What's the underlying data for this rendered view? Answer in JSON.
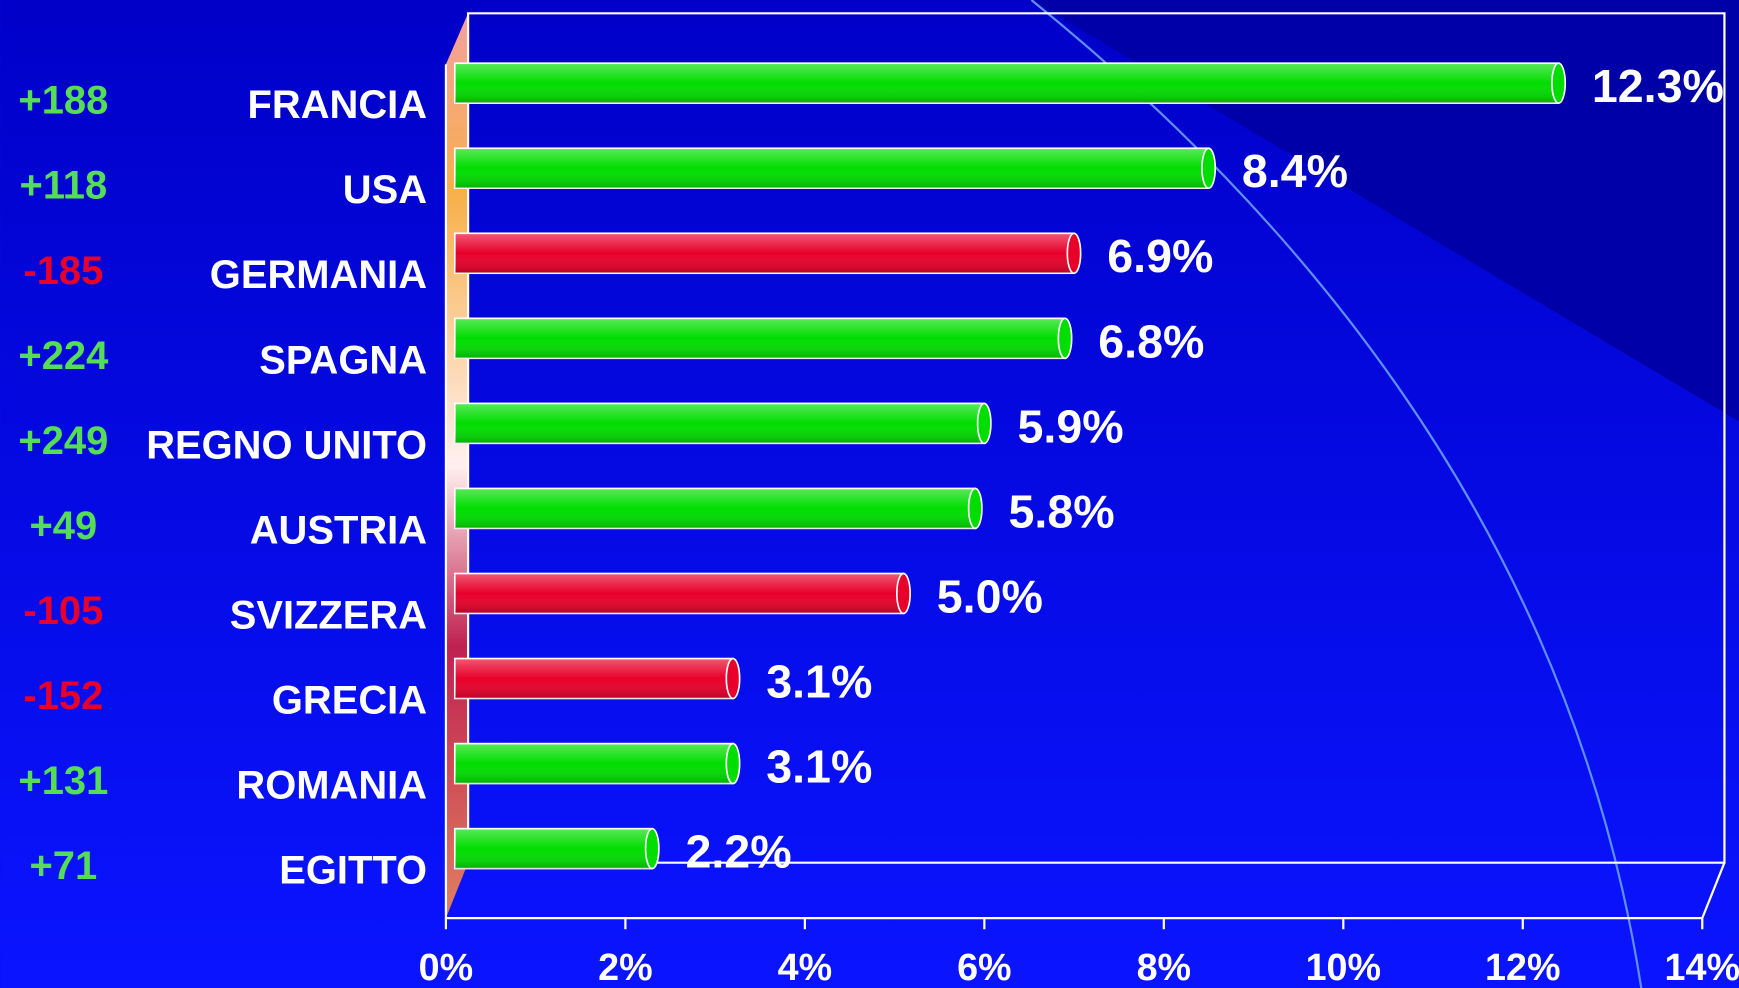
{
  "chart_data": {
    "type": "bar",
    "orientation": "horizontal",
    "categories": [
      "FRANCIA",
      "USA",
      "GERMANIA",
      "SPAGNA",
      "REGNO UNITO",
      "AUSTRIA",
      "SVIZZERA",
      "GRECIA",
      "ROMANIA",
      "EGITTO"
    ],
    "values": [
      12.3,
      8.4,
      6.9,
      6.8,
      5.9,
      5.8,
      5.0,
      3.1,
      3.1,
      2.2
    ],
    "value_labels": [
      "12.3%",
      "8.4%",
      "6.9%",
      "6.8%",
      "5.9%",
      "5.8%",
      "5.0%",
      "3.1%",
      "3.1%",
      "2.2%"
    ],
    "changes": [
      188,
      118,
      -185,
      224,
      249,
      49,
      -105,
      -152,
      131,
      71
    ],
    "change_labels": [
      "+188",
      "+118",
      "-185",
      "+224",
      "+249",
      "+49",
      "-105",
      "-152",
      "+131",
      "+71"
    ],
    "positive_color": "#00dd00",
    "negative_color": "#e8002a",
    "xlim": [
      0,
      14
    ],
    "xticks": [
      {
        "value": 0,
        "label": "0%"
      },
      {
        "value": 2,
        "label": "2%"
      },
      {
        "value": 4,
        "label": "4%"
      },
      {
        "value": 6,
        "label": "6%"
      },
      {
        "value": 8,
        "label": "8%"
      },
      {
        "value": 10,
        "label": "10%"
      },
      {
        "value": 12,
        "label": "12%"
      },
      {
        "value": 14,
        "label": "14%"
      }
    ]
  }
}
